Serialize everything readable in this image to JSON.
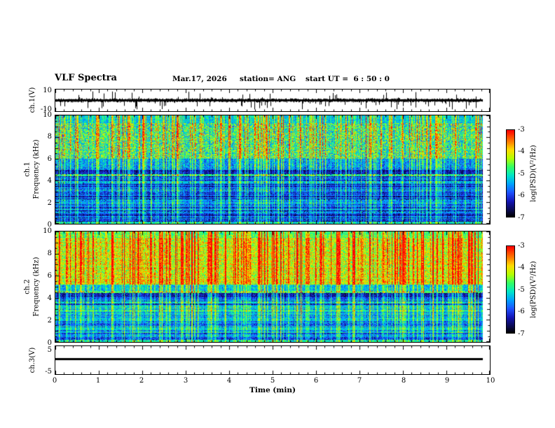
{
  "header": {
    "title": "VLF Spectra",
    "date": "Mar.17, 2026",
    "station": "station= ANG",
    "start_ut": "start UT =  6 : 50 : 0"
  },
  "axes": {
    "time": {
      "label": "Time (min)",
      "ticks": [
        "0",
        "1",
        "2",
        "3",
        "4",
        "5",
        "6",
        "7",
        "8",
        "9",
        "10"
      ]
    },
    "freq_ticks": [
      "10",
      "8",
      "6",
      "4",
      "2",
      "0"
    ],
    "ch1_wave": {
      "label": "ch.1(V)",
      "ticks": [
        "10",
        "-10"
      ]
    },
    "ch1_spec": {
      "line1": "ch.1",
      "line2": "Frequency (kHz)"
    },
    "ch2_spec": {
      "line1": "ch.2",
      "line2": "Frequency (kHz)"
    },
    "ch3_wave": {
      "label": "ch.3(V)",
      "ticks": [
        "5",
        "-5"
      ]
    }
  },
  "colorbar": {
    "label": "log(PSD)(V²/Hz)",
    "ticks": [
      "-3",
      "-4",
      "-5",
      "-6",
      "-7"
    ],
    "clim": [
      -7,
      -3
    ]
  },
  "colormap": {
    "stops": [
      [
        -7,
        "#010104"
      ],
      [
        -6.7,
        "#0a0a50"
      ],
      [
        -6.3,
        "#1414b4"
      ],
      [
        -5.9,
        "#1e50ff"
      ],
      [
        -5.5,
        "#00a0ff"
      ],
      [
        -5.1,
        "#00e6c8"
      ],
      [
        -4.7,
        "#32ff64"
      ],
      [
        -4.3,
        "#b4ff00"
      ],
      [
        -3.9,
        "#ffdc00"
      ],
      [
        -3.5,
        "#ff7800"
      ],
      [
        -3,
        "#ff0000"
      ]
    ]
  },
  "chart_data": {
    "type": "composite",
    "title": "VLF Spectra",
    "xlabel": "Time (min)",
    "xlim": [
      0,
      10
    ],
    "data_end_min": 9.85,
    "panels": [
      {
        "type": "line",
        "name": "ch.1 voltage",
        "ylabel": "ch.1(V)",
        "ylim": [
          -10,
          10
        ],
        "seed": 11,
        "description": "dense broadband noise centred on 0 V with impulsive sferic spikes",
        "noise": {
          "base": 1.2,
          "spread": 2.2
        },
        "spikes": {
          "count": 90,
          "min": 3,
          "max": 13
        }
      },
      {
        "type": "heatmap",
        "name": "ch.1 spectrogram",
        "ylabel": "ch.1 Frequency (kHz)",
        "ylim": [
          0,
          10
        ],
        "clim": [
          -7,
          -3
        ],
        "clabel": "log(PSD)(V²/Hz)",
        "seed": 42,
        "bands": [
          [
            9.3,
            10.01,
            -5.2,
            0.5
          ],
          [
            6,
            9.3,
            -4.9,
            0.9
          ],
          [
            5,
            6,
            -5.6,
            0.6
          ],
          [
            4.35,
            5,
            -6.35,
            0.4
          ],
          [
            3.9,
            4.35,
            -5.9,
            0.5
          ],
          [
            3.3,
            3.9,
            -6.1,
            0.4
          ],
          [
            2.6,
            3.3,
            -5.8,
            0.5
          ],
          [
            2,
            2.6,
            -6.2,
            0.4
          ],
          [
            1.3,
            2,
            -5.9,
            0.5
          ],
          [
            0.7,
            1.3,
            -6.3,
            0.4
          ],
          [
            0,
            0.7,
            -6,
            0.5
          ]
        ],
        "lines": [
          [
            4.5,
            -4.9
          ],
          [
            3.85,
            -5.3
          ],
          [
            2.15,
            -5.5
          ],
          [
            1.05,
            -5.6
          ],
          [
            0.12,
            -5.1
          ]
        ],
        "streaks": {
          "count": 220,
          "min": 0.3,
          "max": 2
        }
      },
      {
        "type": "heatmap",
        "name": "ch.2 spectrogram",
        "ylabel": "ch.2 Frequency (kHz)",
        "ylim": [
          0,
          10
        ],
        "clim": [
          -7,
          -3
        ],
        "clabel": "log(PSD)(V²/Hz)",
        "seed": 77,
        "bands": [
          [
            9.4,
            10.01,
            -4.7,
            0.5
          ],
          [
            5.2,
            9.4,
            -4.2,
            0.7
          ],
          [
            4.6,
            5.2,
            -5.4,
            0.5
          ],
          [
            3.9,
            4.6,
            -6.3,
            0.4
          ],
          [
            3.2,
            3.9,
            -5.9,
            0.5
          ],
          [
            2.4,
            3.2,
            -5.4,
            0.5
          ],
          [
            1.6,
            2.4,
            -5.8,
            0.5
          ],
          [
            0.8,
            1.6,
            -5.5,
            0.5
          ],
          [
            0,
            0.8,
            -5.9,
            0.5
          ]
        ],
        "lines": [
          [
            4.5,
            -4.7
          ],
          [
            3.6,
            -5.2
          ],
          [
            2,
            -5.4
          ],
          [
            1.2,
            -5.3
          ],
          [
            0.12,
            -5
          ]
        ],
        "streaks": {
          "count": 230,
          "min": 0.3,
          "max": 2.3
        }
      },
      {
        "type": "line",
        "name": "ch.3 voltage",
        "ylabel": "ch.3(V)",
        "ylim": [
          -5,
          5
        ],
        "seed": 5,
        "description": "flat constant-level trace",
        "constant_value": 0.5
      }
    ]
  }
}
